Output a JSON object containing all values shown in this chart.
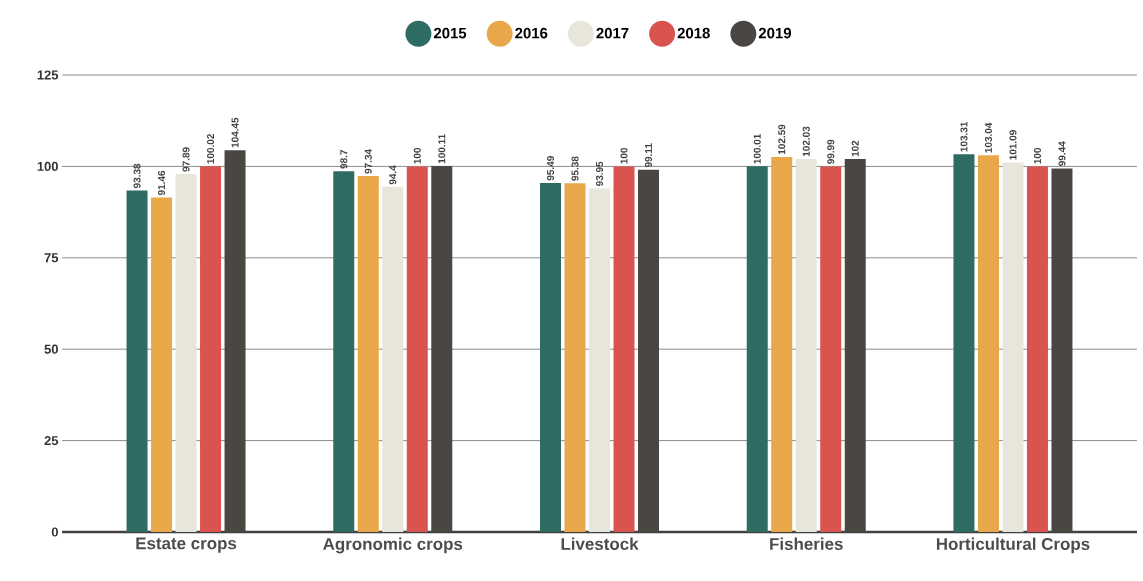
{
  "chart_data": {
    "type": "bar",
    "categories": [
      "Estate crops",
      "Agronomic crops",
      "Livestock",
      "Fisheries",
      "Horticultural Crops"
    ],
    "series": [
      {
        "name": "2015",
        "color": "#2e6b62",
        "values": [
          93.38,
          98.7,
          95.49,
          100.01,
          103.31
        ]
      },
      {
        "name": "2016",
        "color": "#e8a84a",
        "values": [
          91.46,
          97.34,
          95.38,
          102.59,
          103.04
        ]
      },
      {
        "name": "2017",
        "color": "#e8e6da",
        "values": [
          97.89,
          94.4,
          93.95,
          102.03,
          101.09
        ]
      },
      {
        "name": "2018",
        "color": "#d9534f",
        "values": [
          100.02,
          100,
          100,
          99.99,
          100
        ]
      },
      {
        "name": "2019",
        "color": "#4a4743",
        "values": [
          104.45,
          100.11,
          99.11,
          102,
          99.44
        ]
      }
    ],
    "ylim": [
      0,
      125
    ],
    "yticks": [
      0,
      25,
      50,
      75,
      100,
      125
    ],
    "grid": "y",
    "legend": "top",
    "data_labels": true
  }
}
